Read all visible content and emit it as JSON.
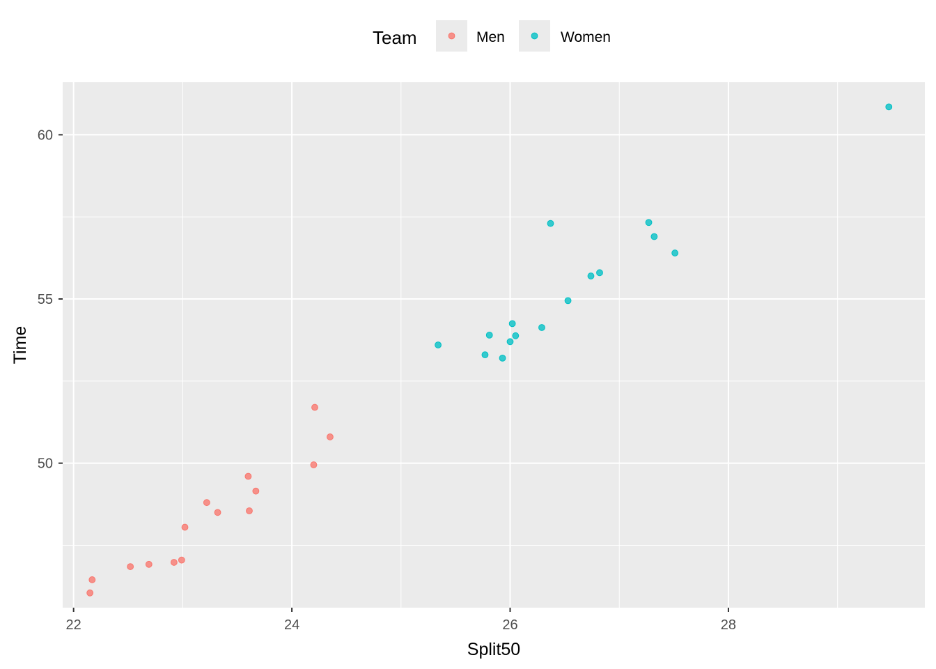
{
  "chart_data": {
    "type": "scatter",
    "title": "",
    "xlabel": "Split50",
    "ylabel": "Time",
    "xlim": [
      21.9,
      29.8
    ],
    "ylim": [
      45.6,
      61.6
    ],
    "x_ticks": [
      22,
      24,
      26,
      28
    ],
    "x_minor_ticks": [
      23,
      25,
      27,
      29
    ],
    "y_ticks": [
      50,
      55,
      60
    ],
    "y_minor_ticks": [
      47.5,
      52.5,
      57.5
    ],
    "grid": true,
    "legend": {
      "title": "Team",
      "position": "top"
    },
    "colors": {
      "panel": "#ebebeb",
      "grid": "#ffffff",
      "legend_key_bg": "#ebebeb"
    },
    "series": [
      {
        "name": "Men",
        "color": "#f8766d",
        "points": [
          {
            "x": 22.15,
            "y": 46.05
          },
          {
            "x": 22.17,
            "y": 46.45
          },
          {
            "x": 22.52,
            "y": 46.85
          },
          {
            "x": 22.69,
            "y": 46.92
          },
          {
            "x": 22.92,
            "y": 46.98
          },
          {
            "x": 22.99,
            "y": 47.05
          },
          {
            "x": 23.02,
            "y": 48.05
          },
          {
            "x": 23.22,
            "y": 48.8
          },
          {
            "x": 23.32,
            "y": 48.5
          },
          {
            "x": 23.6,
            "y": 49.6
          },
          {
            "x": 23.61,
            "y": 48.55
          },
          {
            "x": 23.67,
            "y": 49.15
          },
          {
            "x": 24.2,
            "y": 49.95
          },
          {
            "x": 24.21,
            "y": 51.7
          },
          {
            "x": 24.35,
            "y": 50.8
          }
        ]
      },
      {
        "name": "Women",
        "color": "#00bfc4",
        "points": [
          {
            "x": 25.34,
            "y": 53.6
          },
          {
            "x": 25.77,
            "y": 53.3
          },
          {
            "x": 25.81,
            "y": 53.9
          },
          {
            "x": 25.93,
            "y": 53.2
          },
          {
            "x": 26.0,
            "y": 53.7
          },
          {
            "x": 26.02,
            "y": 54.25
          },
          {
            "x": 26.05,
            "y": 53.88
          },
          {
            "x": 26.29,
            "y": 54.13
          },
          {
            "x": 26.37,
            "y": 57.3
          },
          {
            "x": 26.53,
            "y": 54.95
          },
          {
            "x": 26.74,
            "y": 55.7
          },
          {
            "x": 26.82,
            "y": 55.8
          },
          {
            "x": 27.27,
            "y": 57.33
          },
          {
            "x": 27.32,
            "y": 56.9
          },
          {
            "x": 27.51,
            "y": 56.4
          },
          {
            "x": 29.47,
            "y": 60.85
          }
        ]
      }
    ]
  }
}
